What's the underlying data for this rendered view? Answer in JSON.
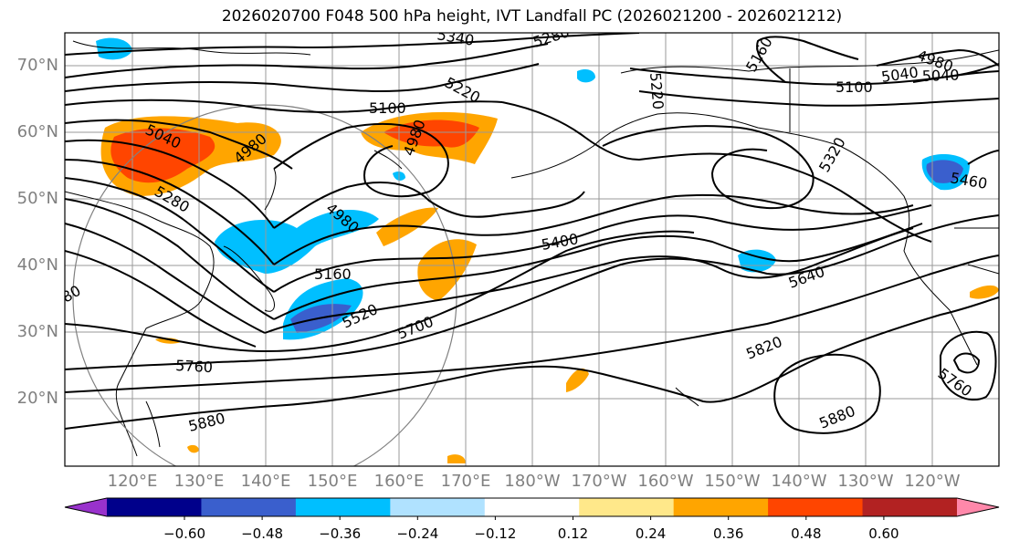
{
  "title": "2026020700 F048 500 hPa height, IVT Landfall PC (2026021200 - 2026021212)",
  "lat_labels": [
    "70°N",
    "60°N",
    "50°N",
    "40°N",
    "30°N",
    "20°N"
  ],
  "lon_labels": [
    "120°E",
    "130°E",
    "140°E",
    "150°E",
    "160°E",
    "170°E",
    "180°W",
    "170°W",
    "160°W",
    "150°W",
    "140°W",
    "130°W",
    "120°W"
  ],
  "contour_labels": [
    "5340",
    "5280",
    "5160",
    "4980",
    "5040",
    "5220",
    "5220",
    "5100",
    "5100",
    "5040",
    "5040",
    "4980",
    "5280",
    "4980",
    "5460",
    "4980",
    "5400",
    "5160",
    "5320",
    "5640",
    "5520",
    "5700",
    "5760",
    "5820",
    "5760",
    "5880",
    "5880",
    "80"
  ],
  "colorbar": {
    "ticks": [
      "−0.60",
      "−0.48",
      "−0.36",
      "−0.24",
      "−0.12",
      "0.12",
      "0.24",
      "0.36",
      "0.48",
      "0.60"
    ],
    "colors": [
      "#9932CC",
      "#00008B",
      "#3A5FCD",
      "#00BFFF",
      "#B0E2FF",
      "#FFFFFF",
      "#FFE88A",
      "#FFA500",
      "#FF4500",
      "#B22222",
      "#FF88AA"
    ]
  },
  "colors": {
    "coast": "#000000",
    "grid": "#999999",
    "ring": "#808080",
    "contour": "#000000"
  }
}
